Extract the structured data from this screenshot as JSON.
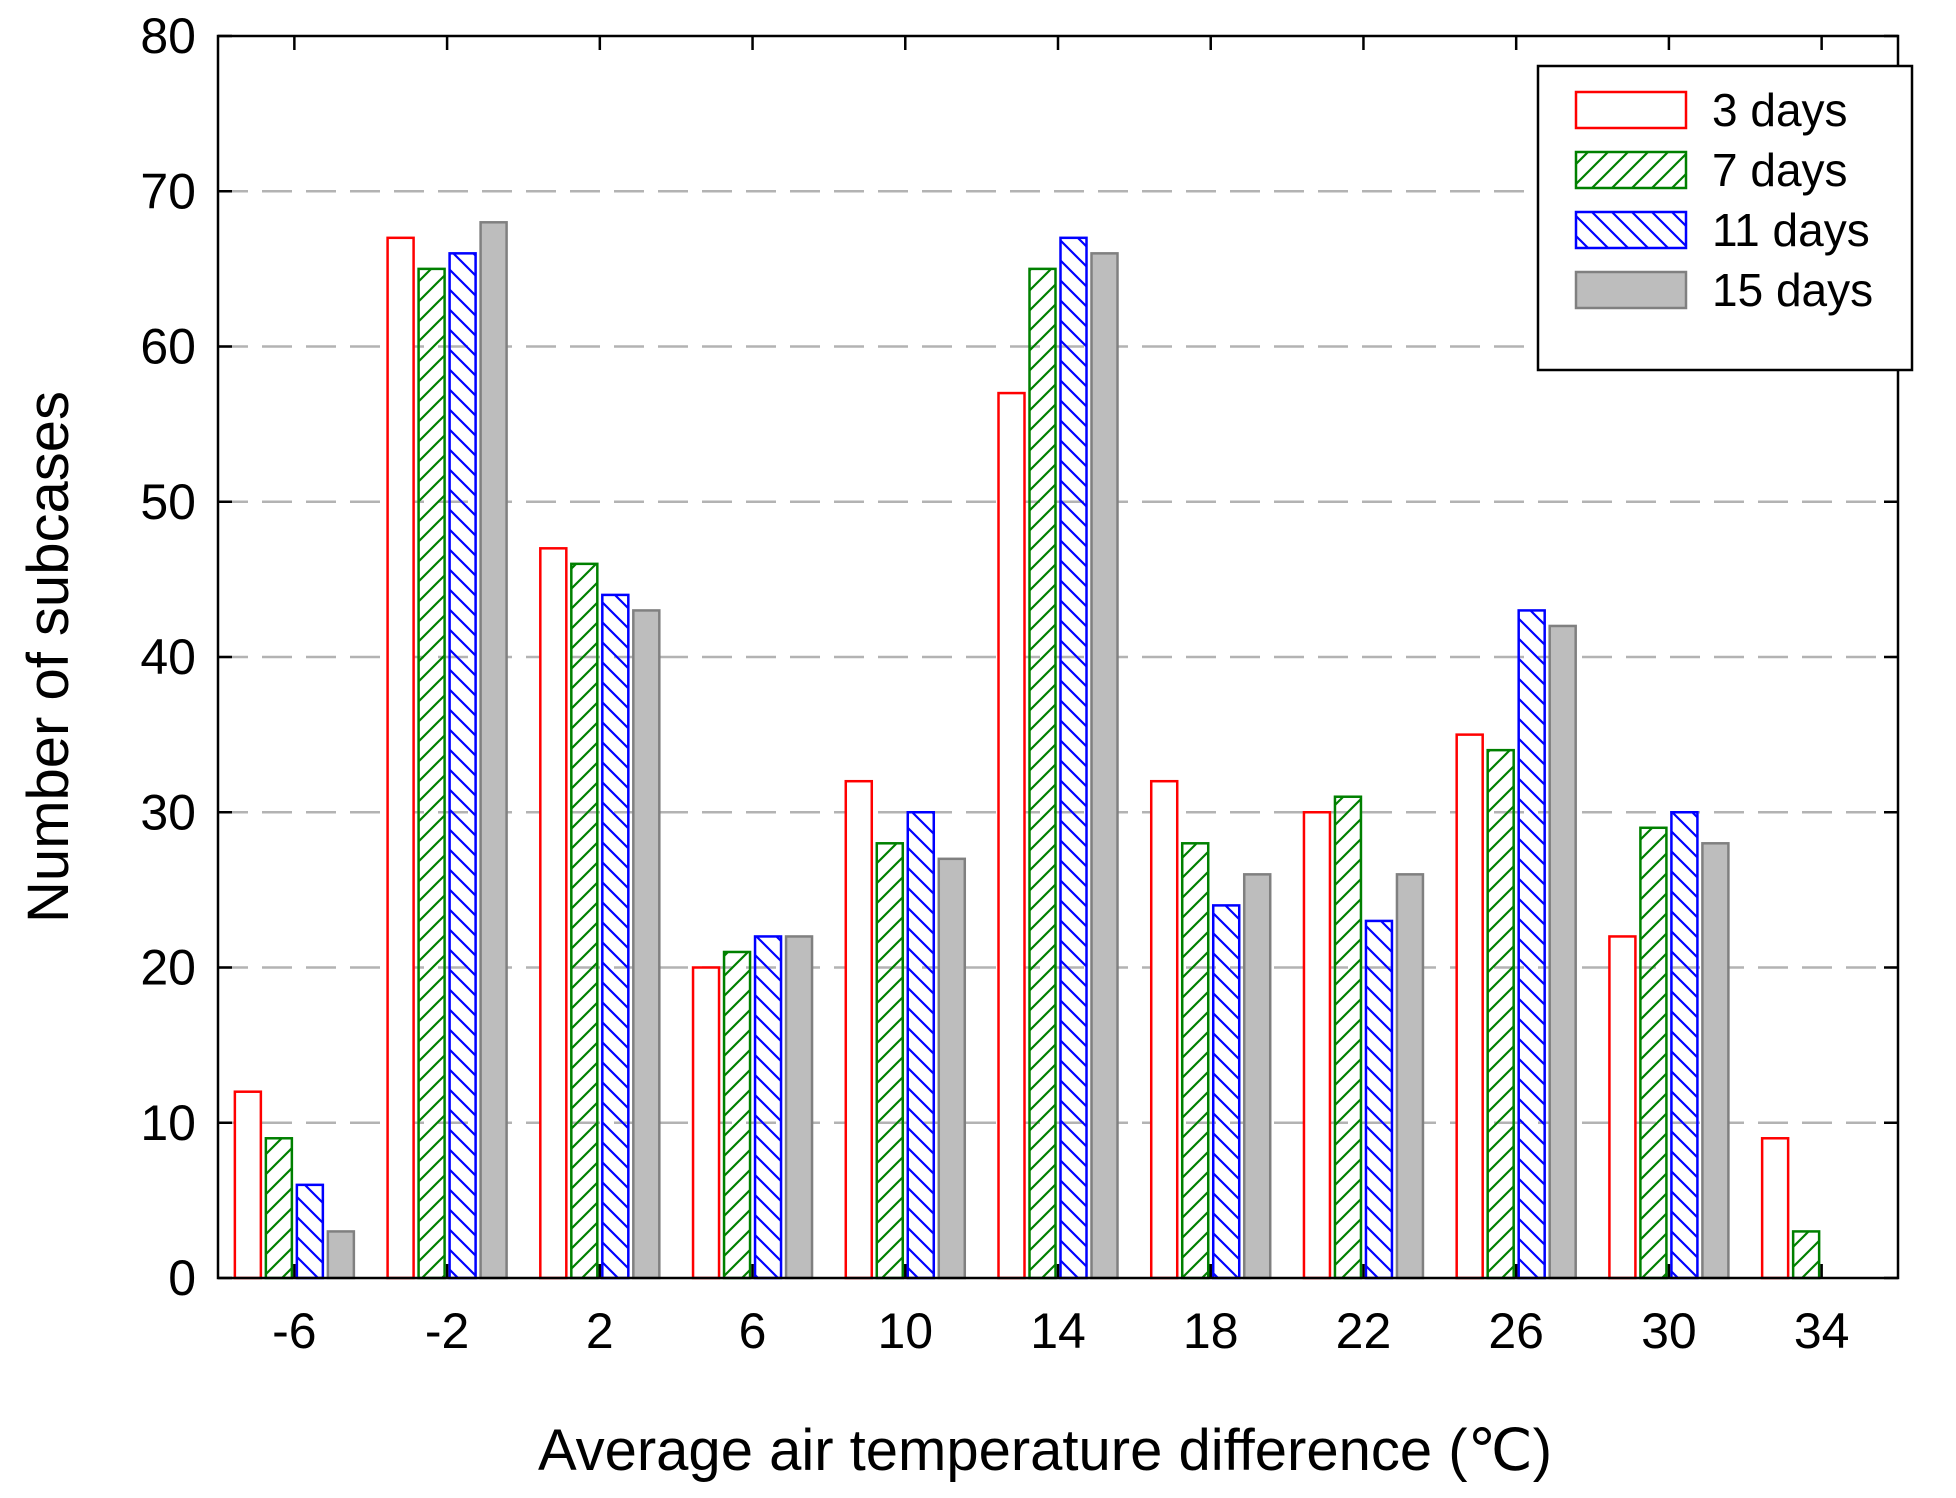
{
  "chart_data": {
    "type": "bar",
    "title": "",
    "xlabel": "Average air temperature difference (℃)",
    "ylabel": "Number of subcases",
    "categories": [
      "-6",
      "-2",
      "2",
      "6",
      "10",
      "14",
      "18",
      "22",
      "26",
      "30",
      "34"
    ],
    "ylim": [
      0,
      80
    ],
    "yticks": [
      "0",
      "10",
      "20",
      "30",
      "40",
      "50",
      "60",
      "70",
      "80"
    ],
    "grid": "horizontal dashed",
    "legend_position": "top-right",
    "series": [
      {
        "name": "3 days",
        "color": "#ff0000",
        "fill": "none",
        "values": [
          12,
          67,
          47,
          20,
          32,
          57,
          32,
          30,
          35,
          22,
          9
        ]
      },
      {
        "name": "7 days",
        "color": "#008000",
        "fill": "hatch-forward",
        "values": [
          9,
          65,
          46,
          21,
          28,
          65,
          28,
          31,
          34,
          29,
          3
        ]
      },
      {
        "name": "11 days",
        "color": "#0000ff",
        "fill": "hatch-back",
        "values": [
          6,
          66,
          44,
          22,
          30,
          67,
          24,
          23,
          43,
          30,
          0
        ]
      },
      {
        "name": "15 days",
        "color": "#808080",
        "fill": "solid",
        "values": [
          3,
          68,
          43,
          22,
          27,
          66,
          26,
          26,
          42,
          28,
          0
        ]
      }
    ]
  }
}
